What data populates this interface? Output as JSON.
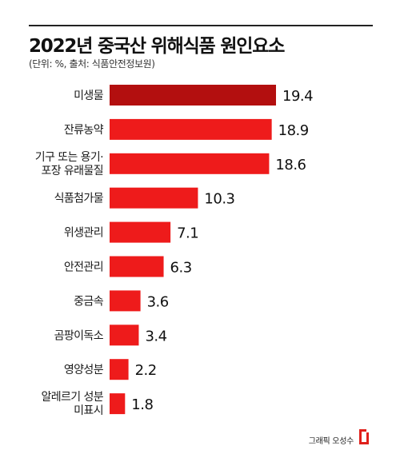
{
  "title": "2022년 중국산 위해식품 원인요소",
  "subtitle": "(단위: %, 출처: 식품안전정보원)",
  "credit": "그래픽 오성수",
  "colors": {
    "highlight_bar": "#b30f0f",
    "bar": "#ee1b1b",
    "highlight_value": "#cc1a1a",
    "value": "#111111"
  },
  "chart_data": {
    "type": "bar",
    "orientation": "horizontal",
    "title": "2022년 중국산 위해식품 원인요소",
    "subtitle": "(단위: %, 출처: 식품안전정보원)",
    "categories": [
      [
        "미생물"
      ],
      [
        "잔류농약"
      ],
      [
        "기구 또는 용기·",
        "포장 유래물질"
      ],
      [
        "식품첨가물"
      ],
      [
        "위생관리"
      ],
      [
        "안전관리"
      ],
      [
        "중금속"
      ],
      [
        "곰팡이독소"
      ],
      [
        "영양성분"
      ],
      [
        "알레르기 성분",
        "미표시"
      ]
    ],
    "values": [
      19.4,
      18.9,
      18.6,
      10.3,
      7.1,
      6.3,
      3.6,
      3.4,
      2.2,
      1.8
    ],
    "value_labels": [
      "19.4",
      "18.9",
      "18.6",
      "10.3",
      "7.1",
      "6.3",
      "3.6",
      "3.4",
      "2.2",
      "1.8"
    ],
    "highlight_index": 0,
    "xlim": [
      0,
      19.4
    ],
    "grid": false,
    "legend": "none"
  }
}
